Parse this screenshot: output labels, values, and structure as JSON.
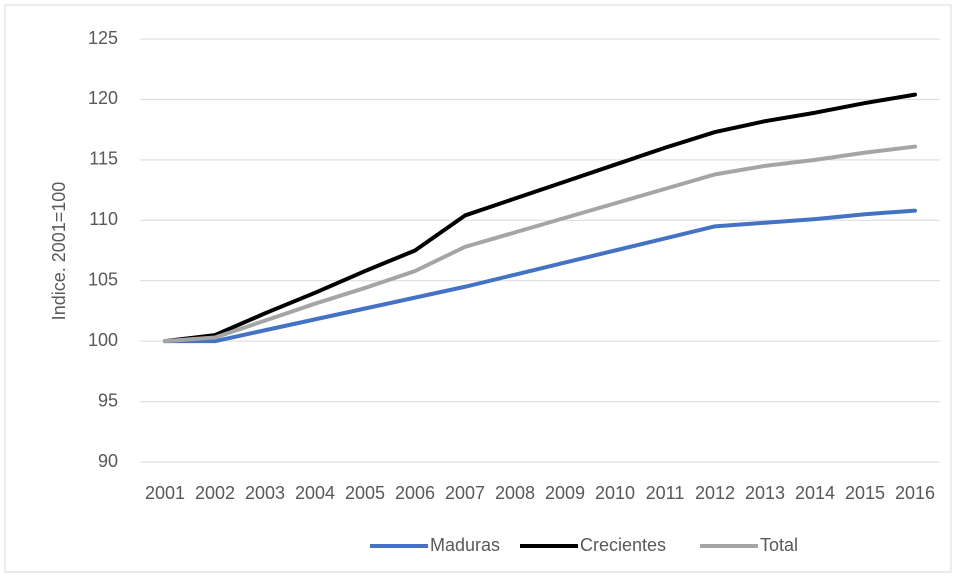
{
  "chart_data": {
    "type": "line",
    "y_label": "Indice. 2001=100",
    "categories": [
      "2001",
      "2002",
      "2003",
      "2004",
      "2005",
      "2006",
      "2007",
      "2008",
      "2009",
      "2010",
      "2011",
      "2012",
      "2013",
      "2014",
      "2015",
      "2016"
    ],
    "series": [
      {
        "name": "Maduras",
        "color": "#4472c4",
        "values": [
          100,
          100,
          100.9,
          101.8,
          102.7,
          103.6,
          104.5,
          105.5,
          106.5,
          107.5,
          108.5,
          109.5,
          109.8,
          110.1,
          110.5,
          110.8
        ]
      },
      {
        "name": "Crecientes",
        "color": "#000000",
        "values": [
          100,
          100.5,
          102.3,
          104.0,
          105.8,
          107.5,
          110.4,
          111.8,
          113.2,
          114.6,
          116.0,
          117.3,
          118.2,
          118.9,
          119.7,
          120.4
        ]
      },
      {
        "name": "Total",
        "color": "#a5a5a5",
        "values": [
          100,
          100.3,
          101.7,
          103.1,
          104.4,
          105.8,
          107.8,
          109.0,
          110.2,
          111.4,
          112.6,
          113.8,
          114.5,
          115.0,
          115.6,
          116.1
        ]
      }
    ],
    "ylim": [
      90,
      125
    ],
    "yticks": [
      90,
      95,
      100,
      105,
      110,
      115,
      120,
      125
    ],
    "grid": true,
    "legend": "bottom"
  }
}
